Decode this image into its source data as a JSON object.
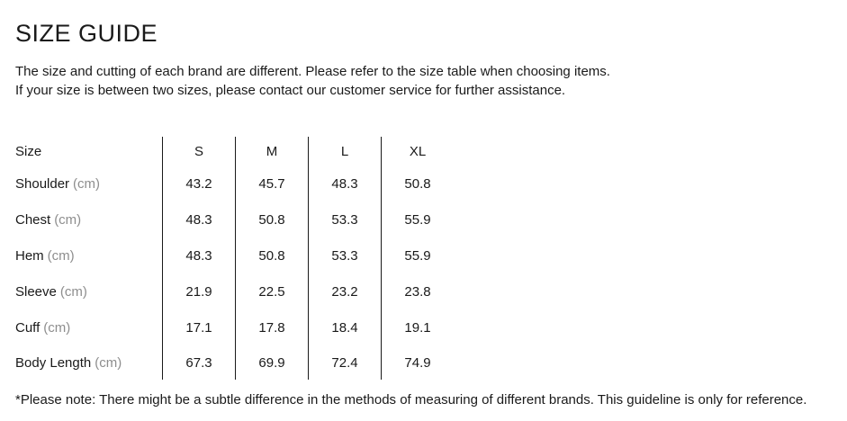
{
  "page": {
    "title": "SIZE GUIDE",
    "intro_line1": "The size and cutting of each brand are different. Please refer to the size table when choosing items.",
    "intro_line2": "If your size is between two sizes, please contact our customer service for further assistance.",
    "footnote": "*Please note: There might be a subtle difference in the methods of measuring of different brands. This guideline is only for reference."
  },
  "table": {
    "header_label": "Size",
    "columns": [
      "S",
      "M",
      "L",
      "XL"
    ],
    "rows": [
      {
        "label": "Shoulder",
        "unit": "(cm)",
        "values": [
          "43.2",
          "45.7",
          "48.3",
          "50.8"
        ]
      },
      {
        "label": "Chest",
        "unit": "(cm)",
        "values": [
          "48.3",
          "50.8",
          "53.3",
          "55.9"
        ]
      },
      {
        "label": "Hem",
        "unit": "(cm)",
        "values": [
          "48.3",
          "50.8",
          "53.3",
          "55.9"
        ]
      },
      {
        "label": "Sleeve",
        "unit": "(cm)",
        "values": [
          "21.9",
          "22.5",
          "23.2",
          "23.8"
        ]
      },
      {
        "label": "Cuff",
        "unit": "(cm)",
        "values": [
          "17.1",
          "17.8",
          "18.4",
          "19.1"
        ]
      },
      {
        "label": "Body Length",
        "unit": "(cm)",
        "values": [
          "67.3",
          "69.9",
          "72.4",
          "74.9"
        ]
      }
    ]
  },
  "colors": {
    "text": "#1a1a1a",
    "muted_unit": "#8e8e8e",
    "divider": "#1a1a1a",
    "background": "#ffffff"
  }
}
